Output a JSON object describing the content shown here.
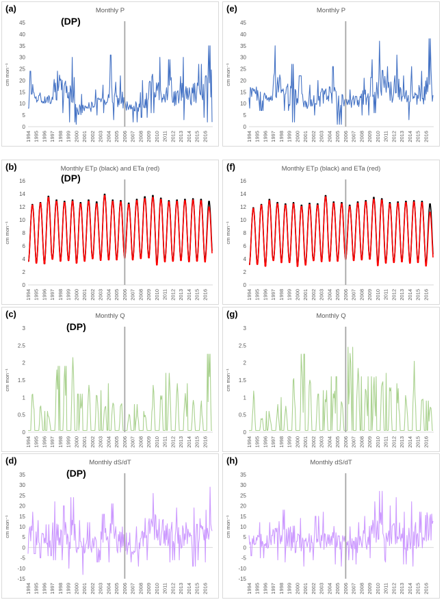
{
  "panels": [
    {
      "id": "a",
      "label": "(a)",
      "dp": "(DP)",
      "chart_index": 0
    },
    {
      "id": "e",
      "label": "(e)",
      "dp": "",
      "chart_index": 1
    },
    {
      "id": "b",
      "label": "(b)",
      "dp": "(DP)",
      "chart_index": 2
    },
    {
      "id": "f",
      "label": "(f)",
      "dp": "",
      "chart_index": 3
    },
    {
      "id": "c",
      "label": "(c)",
      "dp": "(DP)",
      "chart_index": 4
    },
    {
      "id": "g",
      "label": "(g)",
      "dp": "",
      "chart_index": 5
    },
    {
      "id": "d",
      "label": "(d)",
      "dp": "(DP)",
      "chart_index": 6
    },
    {
      "id": "h",
      "label": "(h)",
      "dp": "",
      "chart_index": 7
    }
  ],
  "colors": {
    "P": "#4472c4",
    "ETp": "#000000",
    "ETa": "#ff0000",
    "Q": "#a9d18e",
    "dS": "#cc99ff",
    "marker": "#a6a6a6",
    "axis": "#d9d9d9",
    "text": "#595959"
  },
  "chart_data": [
    {
      "panel": "(a)",
      "type": "line",
      "title": "Monthly P",
      "ylabel": "cm mon⁻¹",
      "ylim": [
        0,
        45
      ],
      "yticks": [
        0,
        5,
        10,
        15,
        20,
        25,
        30,
        35,
        40,
        45
      ],
      "x_tick_labels": [
        "1994",
        "1995",
        "1996",
        "1997",
        "1998",
        "1999",
        "2000",
        "2001",
        "2002",
        "2003",
        "2004",
        "2005",
        "2006",
        "2007",
        "2008",
        "2009",
        "2010",
        "2011",
        "2012",
        "2013",
        "2014",
        "2015",
        "2016"
      ],
      "vertical_marker_year": "2006",
      "series": [
        {
          "name": "P",
          "color": "#4472c4",
          "annual_peaks": [
            24,
            20,
            16,
            33,
            28,
            30,
            14,
            14,
            16,
            18,
            31,
            22,
            14,
            15,
            20,
            31,
            30,
            29,
            24,
            30,
            28,
            27,
            35
          ],
          "annual_troughs": [
            8,
            5,
            8,
            4,
            6,
            2,
            1,
            4,
            5,
            6,
            3,
            1,
            4,
            2,
            4,
            6,
            3,
            4,
            3,
            3,
            3,
            4,
            2
          ]
        }
      ]
    },
    {
      "panel": "(e)",
      "type": "line",
      "title": "Monthly P",
      "ylabel": "cm mon⁻¹",
      "ylim": [
        0,
        45
      ],
      "yticks": [
        0,
        5,
        10,
        15,
        20,
        25,
        30,
        35,
        40,
        45
      ],
      "x_tick_labels": [
        "1994",
        "1995",
        "1996",
        "1997",
        "1998",
        "1999",
        "2000",
        "2001",
        "2002",
        "2003",
        "2004",
        "2005",
        "2006",
        "2007",
        "2008",
        "2009",
        "2010",
        "2011",
        "2012",
        "2013",
        "2014",
        "2015",
        "2016"
      ],
      "vertical_marker_year": "2006",
      "series": [
        {
          "name": "P",
          "color": "#4472c4",
          "annual_peaks": [
            23,
            20,
            17,
            35,
            25,
            27,
            22,
            18,
            20,
            22,
            26,
            20,
            16,
            18,
            21,
            29,
            37,
            26,
            31,
            22,
            26,
            24,
            38
          ],
          "annual_troughs": [
            8,
            7,
            8,
            5,
            7,
            2,
            3,
            4,
            5,
            6,
            4,
            1,
            4,
            3,
            5,
            6,
            4,
            4,
            3,
            3,
            4,
            4,
            1
          ]
        }
      ]
    },
    {
      "panel": "(b)",
      "type": "line",
      "title": "Monthly ETp (black) and ETa (red)",
      "ylabel": "cm mon⁻¹",
      "ylim": [
        0,
        16
      ],
      "yticks": [
        0,
        2,
        4,
        6,
        8,
        10,
        12,
        14,
        16
      ],
      "x_tick_labels": [
        "1994",
        "1995",
        "1996",
        "1997",
        "1998",
        "1999",
        "2000",
        "2001",
        "2002",
        "2003",
        "2004",
        "2005",
        "2006",
        "2007",
        "2008",
        "2009",
        "2010",
        "2011",
        "2012",
        "2013",
        "2014",
        "2015",
        "2016"
      ],
      "vertical_marker_year": "2006",
      "series": [
        {
          "name": "ETp",
          "color": "#000000",
          "annual_peaks": [
            12.5,
            12.8,
            13.8,
            13.2,
            13.0,
            13.2,
            12.8,
            13.2,
            12.9,
            14.1,
            13.2,
            13.1,
            12.7,
            13.3,
            13.7,
            13.9,
            13.5,
            13.1,
            13.2,
            13.3,
            13.4,
            13.3,
            13.0
          ],
          "annual_troughs": [
            3.4,
            3.2,
            3.0,
            3.8,
            3.5,
            3.6,
            3.2,
            3.5,
            3.9,
            3.6,
            3.7,
            3.7,
            4.0,
            3.7,
            3.9,
            4.0,
            3.1,
            3.4,
            3.5,
            3.6,
            3.4,
            3.5,
            3.6
          ]
        },
        {
          "name": "ETa",
          "color": "#ff0000",
          "annual_peaks": [
            12.4,
            12.7,
            13.6,
            13.0,
            12.8,
            13.0,
            12.6,
            13.0,
            12.6,
            13.9,
            13.0,
            12.9,
            12.5,
            13.1,
            13.4,
            13.6,
            13.3,
            12.9,
            13.0,
            13.1,
            13.2,
            13.1,
            12.1
          ],
          "annual_troughs": [
            3.4,
            3.1,
            3.0,
            3.7,
            3.4,
            3.5,
            3.1,
            3.4,
            3.8,
            3.5,
            3.6,
            3.6,
            3.9,
            3.6,
            3.8,
            3.9,
            2.8,
            3.3,
            3.4,
            3.5,
            3.3,
            3.4,
            3.3
          ]
        }
      ]
    },
    {
      "panel": "(f)",
      "type": "line",
      "title": "Monthly ETp (black) and ETa (red)",
      "ylabel": "cm mon⁻¹",
      "ylim": [
        0,
        16
      ],
      "yticks": [
        0,
        2,
        4,
        6,
        8,
        10,
        12,
        14,
        16
      ],
      "x_tick_labels": [
        "1994",
        "1995",
        "1996",
        "1997",
        "1998",
        "1999",
        "2000",
        "2001",
        "2002",
        "2003",
        "2004",
        "2005",
        "2006",
        "2007",
        "2008",
        "2009",
        "2010",
        "2011",
        "2012",
        "2013",
        "2014",
        "2015",
        "2016"
      ],
      "vertical_marker_year": "2006",
      "series": [
        {
          "name": "ETp",
          "color": "#000000",
          "annual_peaks": [
            12.0,
            12.5,
            13.3,
            12.8,
            12.6,
            12.8,
            12.4,
            12.7,
            12.6,
            13.9,
            12.9,
            12.8,
            12.4,
            12.9,
            13.1,
            13.6,
            13.4,
            12.8,
            12.9,
            13.0,
            13.1,
            13.0,
            12.6
          ],
          "annual_troughs": [
            3.0,
            3.0,
            2.7,
            3.6,
            3.3,
            3.3,
            2.8,
            3.0,
            3.6,
            3.4,
            3.5,
            3.5,
            3.8,
            3.6,
            3.7,
            3.8,
            3.1,
            3.2,
            3.3,
            3.4,
            3.2,
            3.3,
            3.0
          ]
        },
        {
          "name": "ETa",
          "color": "#ff0000",
          "annual_peaks": [
            11.9,
            12.4,
            13.1,
            12.6,
            12.4,
            12.6,
            12.2,
            12.5,
            12.4,
            13.7,
            12.7,
            12.6,
            12.2,
            12.7,
            12.9,
            13.3,
            13.2,
            12.6,
            12.7,
            12.8,
            12.9,
            12.8,
            11.3
          ],
          "annual_troughs": [
            2.9,
            2.9,
            2.6,
            3.5,
            3.2,
            3.2,
            2.6,
            2.8,
            3.5,
            3.3,
            3.4,
            3.4,
            3.7,
            3.5,
            3.6,
            3.7,
            2.7,
            3.1,
            3.2,
            3.3,
            3.1,
            3.2,
            2.7
          ]
        }
      ]
    },
    {
      "panel": "(c)",
      "type": "line",
      "title": "Monthly Q",
      "ylabel": "cm mon⁻¹",
      "ylim": [
        0,
        3
      ],
      "yticks": [
        0,
        0.5,
        1,
        1.5,
        2,
        2.5,
        3
      ],
      "x_tick_labels": [
        "1994",
        "1995",
        "1996",
        "1997",
        "1998",
        "1999",
        "2000",
        "2001",
        "2002",
        "2003",
        "2004",
        "2005",
        "2006",
        "2007",
        "2008",
        "2009",
        "2010",
        "2011",
        "2012",
        "2013",
        "2014",
        "2015",
        "2016"
      ],
      "vertical_marker_year": "2006",
      "series": [
        {
          "name": "Q",
          "color": "#a9d18e",
          "annual_peaks": [
            1.6,
            0.9,
            0.6,
            1.9,
            1.9,
            2.15,
            1.1,
            1.4,
            1.7,
            1.2,
            1.4,
            1.0,
            0.6,
            0.8,
            0.6,
            1.4,
            1.3,
            1.7,
            1.5,
            1.4,
            1.1,
            0.9,
            2.25
          ],
          "annual_troughs": [
            0.05,
            0.05,
            0.05,
            0.05,
            0.05,
            0.05,
            0.05,
            0.05,
            0.05,
            0.05,
            0.05,
            0.05,
            0.05,
            0.05,
            0.05,
            0.05,
            0.05,
            0.05,
            0.05,
            0.05,
            0.05,
            0.05,
            0.05
          ]
        }
      ]
    },
    {
      "panel": "(g)",
      "type": "line",
      "title": "Monthly Q",
      "ylabel": "cm mon⁻¹",
      "ylim": [
        0,
        3
      ],
      "yticks": [
        0,
        0.5,
        1,
        1.5,
        2,
        2.5,
        3
      ],
      "x_tick_labels": [
        "1994",
        "1995",
        "1996",
        "1997",
        "1998",
        "1999",
        "2000",
        "2001",
        "2002",
        "2003",
        "2004",
        "2005",
        "2006",
        "2007",
        "2008",
        "2009",
        "2010",
        "2011",
        "2012",
        "2013",
        "2014",
        "2015",
        "2016"
      ],
      "vertical_marker_year": "2006",
      "series": [
        {
          "name": "Q",
          "color": "#a9d18e",
          "annual_peaks": [
            1.2,
            0.6,
            0.6,
            0.8,
            1.0,
            1.8,
            2.25,
            2.0,
            1.1,
            1.2,
            1.6,
            1.3,
            2.45,
            2.4,
            1.6,
            1.6,
            1.8,
            1.7,
            1.4,
            1.4,
            2.15,
            1.4,
            0.9
          ],
          "annual_troughs": [
            0.05,
            0.05,
            0.05,
            0.05,
            0.05,
            0.05,
            0.05,
            0.05,
            0.05,
            0.05,
            0.05,
            0.05,
            0.05,
            0.05,
            0.05,
            0.05,
            0.05,
            0.05,
            0.05,
            0.05,
            0.05,
            0.05,
            0.05
          ]
        }
      ]
    },
    {
      "panel": "(d)",
      "type": "line",
      "title": "Monthly dS/dT",
      "ylabel": "cm mon⁻¹",
      "ylim": [
        -15,
        35
      ],
      "yticks": [
        -15,
        -10,
        -5,
        0,
        5,
        10,
        15,
        20,
        25,
        30,
        35
      ],
      "x_tick_labels": [
        "1994",
        "1995",
        "1996",
        "1997",
        "1998",
        "1999",
        "2000",
        "2001",
        "2002",
        "2003",
        "2004",
        "2005",
        "2006",
        "2007",
        "2008",
        "2009",
        "2010",
        "2011",
        "2012",
        "2013",
        "2014",
        "2015",
        "2016"
      ],
      "vertical_marker_year": "2006",
      "series": [
        {
          "name": "dS/dT",
          "color": "#cc99ff",
          "annual_peaks": [
            17,
            13,
            11,
            22,
            20,
            24,
            13,
            12,
            14,
            16,
            21,
            20,
            7,
            10,
            14,
            26,
            22,
            21,
            19,
            22,
            19,
            24,
            29
          ],
          "annual_troughs": [
            -3,
            -5,
            -4,
            -6,
            -6,
            -10,
            -13,
            -9,
            -7,
            -6,
            -7,
            -11,
            -7,
            -9,
            -6,
            -4,
            -6,
            -7,
            -6,
            -9,
            -9,
            -6,
            -7
          ]
        }
      ]
    },
    {
      "panel": "(h)",
      "type": "line",
      "title": "Monthly dS/dT",
      "ylabel": "cm mon⁻¹",
      "ylim": [
        -15,
        35
      ],
      "yticks": [
        -15,
        -10,
        -5,
        0,
        5,
        10,
        15,
        20,
        25,
        30,
        35
      ],
      "x_tick_labels": [
        "1994",
        "1995",
        "1996",
        "1997",
        "1998",
        "1999",
        "2000",
        "2001",
        "2002",
        "2003",
        "2004",
        "2005",
        "2006",
        "2007",
        "2008",
        "2009",
        "2010",
        "2011",
        "2012",
        "2013",
        "2014",
        "2015",
        "2016"
      ],
      "vertical_marker_year": "2006",
      "series": [
        {
          "name": "dS/dT",
          "color": "#cc99ff",
          "annual_peaks": [
            16,
            12,
            12,
            23,
            18,
            20,
            14,
            13,
            15,
            17,
            18,
            17,
            10,
            12,
            15,
            22,
            27,
            20,
            24,
            17,
            22,
            17,
            30
          ],
          "annual_troughs": [
            -4,
            -5,
            -5,
            -6,
            -7,
            -11,
            -9,
            -8,
            -6,
            -7,
            -8,
            -9,
            -6,
            -8,
            -7,
            -5,
            -6,
            -7,
            -6,
            -8,
            -9,
            -8,
            -6
          ]
        }
      ]
    }
  ]
}
